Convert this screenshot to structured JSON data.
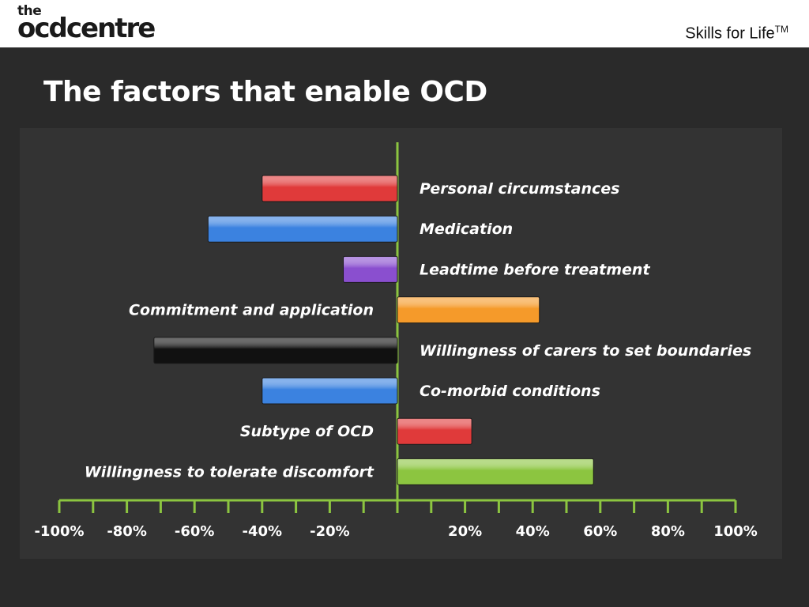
{
  "header": {
    "logo_the": "the",
    "logo_main": "ocdcentre",
    "tagline": "Skills for Life",
    "tagline_mark": "TM"
  },
  "slide": {
    "title": "The factors that enable OCD"
  },
  "chart_data": {
    "type": "bar",
    "orientation": "horizontal",
    "categories": [
      "Personal circumstances",
      "Medication",
      "Leadtime before treatment",
      "Commitment and application",
      "Willingness of carers to set boundaries",
      "Co-morbid conditions",
      "Subtype of OCD",
      "Willingness to tolerate discomfort"
    ],
    "values": [
      -40,
      -56,
      -16,
      42,
      -72,
      -40,
      22,
      58
    ],
    "colors": [
      "#e03a3a",
      "#3b82e0",
      "#8a4fcf",
      "#f59a2a",
      "#111111",
      "#3b82e0",
      "#e03a3a",
      "#8cc540"
    ],
    "xlim": [
      -100,
      100
    ],
    "tick_labels": [
      "-100%",
      "-80%",
      "-60%",
      "-40%",
      "-20%",
      "20%",
      "40%",
      "60%",
      "80%",
      "100%"
    ],
    "tick_values": [
      -100,
      -80,
      -60,
      -40,
      -20,
      20,
      40,
      60,
      80,
      100
    ],
    "axis_color": "#8cc540"
  }
}
